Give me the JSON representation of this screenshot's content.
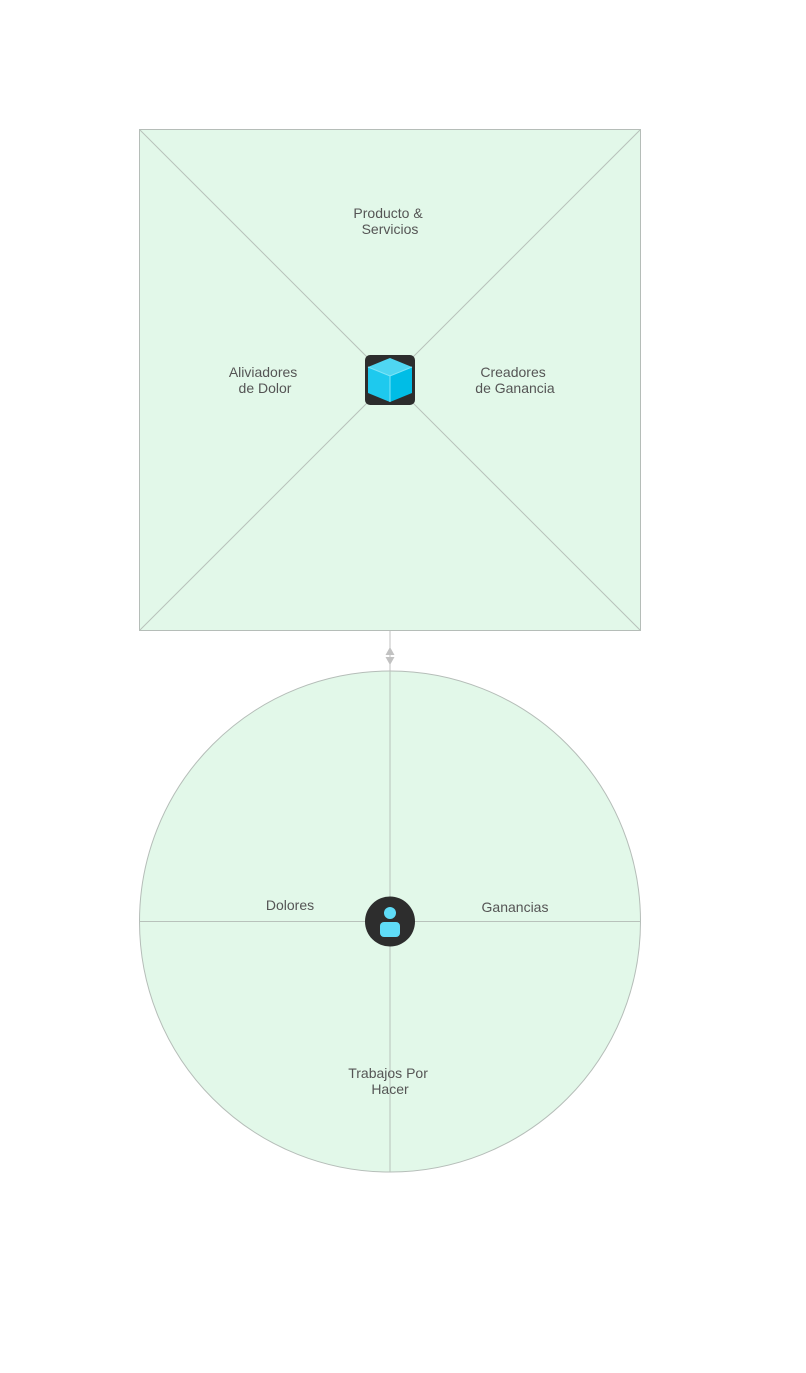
{
  "colors": {
    "page_background": "#ffffff",
    "panel_fill": "#e2f8e9",
    "panel_stroke": "#b5bdb8",
    "divider_stroke": "#b8c2bb",
    "connector_stroke": "#c2c2c2",
    "icon_background": "#2d2d2d",
    "icon_accent": "#00bde6",
    "label_text": "#555555"
  },
  "icons": {
    "product": "cube-icon",
    "customer": "person-icon",
    "connector": "double-arrow-icon"
  },
  "value_map": {
    "top_label_line1": "Producto &",
    "top_label_line2": "Servicios",
    "left_label_line1": "Aliviadores",
    "left_label_line2": "de Dolor",
    "right_label_line1": "Creadores",
    "right_label_line2": "de Ganancia"
  },
  "customer_profile": {
    "left_label": "Dolores",
    "right_label": "Ganancias",
    "bottom_label_line1": "Trabajos Por",
    "bottom_label_line2": "Hacer"
  }
}
